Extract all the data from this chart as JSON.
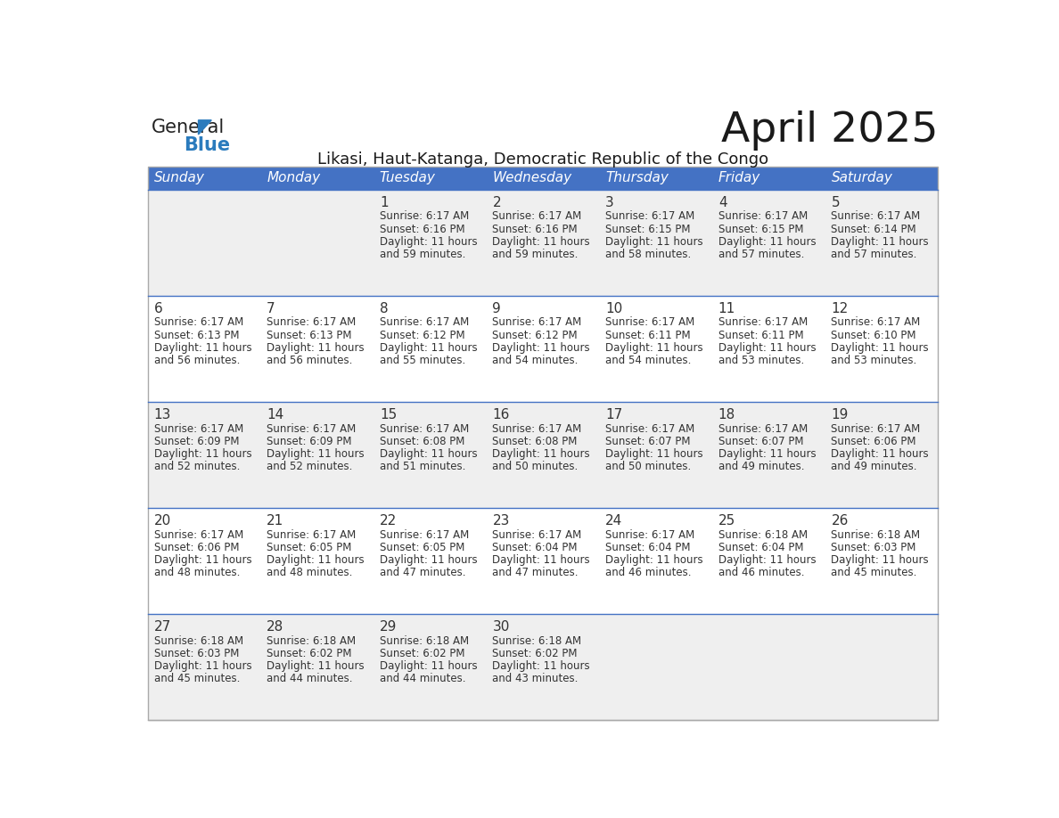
{
  "title": "April 2025",
  "subtitle": "Likasi, Haut-Katanga, Democratic Republic of the Congo",
  "header_bg": "#4472C4",
  "header_text_color": "#FFFFFF",
  "row_bg_odd": "#EFEFEF",
  "row_bg_even": "#FFFFFF",
  "separator_color": "#4472C4",
  "text_color": "#333333",
  "days_of_week": [
    "Sunday",
    "Monday",
    "Tuesday",
    "Wednesday",
    "Thursday",
    "Friday",
    "Saturday"
  ],
  "weeks": [
    [
      {
        "day": "",
        "sunrise": "",
        "sunset": "",
        "daylight": ""
      },
      {
        "day": "",
        "sunrise": "",
        "sunset": "",
        "daylight": ""
      },
      {
        "day": "1",
        "sunrise": "6:17 AM",
        "sunset": "6:16 PM",
        "daylight": "11 hours and 59 minutes."
      },
      {
        "day": "2",
        "sunrise": "6:17 AM",
        "sunset": "6:16 PM",
        "daylight": "11 hours and 59 minutes."
      },
      {
        "day": "3",
        "sunrise": "6:17 AM",
        "sunset": "6:15 PM",
        "daylight": "11 hours and 58 minutes."
      },
      {
        "day": "4",
        "sunrise": "6:17 AM",
        "sunset": "6:15 PM",
        "daylight": "11 hours and 57 minutes."
      },
      {
        "day": "5",
        "sunrise": "6:17 AM",
        "sunset": "6:14 PM",
        "daylight": "11 hours and 57 minutes."
      }
    ],
    [
      {
        "day": "6",
        "sunrise": "6:17 AM",
        "sunset": "6:13 PM",
        "daylight": "11 hours and 56 minutes."
      },
      {
        "day": "7",
        "sunrise": "6:17 AM",
        "sunset": "6:13 PM",
        "daylight": "11 hours and 56 minutes."
      },
      {
        "day": "8",
        "sunrise": "6:17 AM",
        "sunset": "6:12 PM",
        "daylight": "11 hours and 55 minutes."
      },
      {
        "day": "9",
        "sunrise": "6:17 AM",
        "sunset": "6:12 PM",
        "daylight": "11 hours and 54 minutes."
      },
      {
        "day": "10",
        "sunrise": "6:17 AM",
        "sunset": "6:11 PM",
        "daylight": "11 hours and 54 minutes."
      },
      {
        "day": "11",
        "sunrise": "6:17 AM",
        "sunset": "6:11 PM",
        "daylight": "11 hours and 53 minutes."
      },
      {
        "day": "12",
        "sunrise": "6:17 AM",
        "sunset": "6:10 PM",
        "daylight": "11 hours and 53 minutes."
      }
    ],
    [
      {
        "day": "13",
        "sunrise": "6:17 AM",
        "sunset": "6:09 PM",
        "daylight": "11 hours and 52 minutes."
      },
      {
        "day": "14",
        "sunrise": "6:17 AM",
        "sunset": "6:09 PM",
        "daylight": "11 hours and 52 minutes."
      },
      {
        "day": "15",
        "sunrise": "6:17 AM",
        "sunset": "6:08 PM",
        "daylight": "11 hours and 51 minutes."
      },
      {
        "day": "16",
        "sunrise": "6:17 AM",
        "sunset": "6:08 PM",
        "daylight": "11 hours and 50 minutes."
      },
      {
        "day": "17",
        "sunrise": "6:17 AM",
        "sunset": "6:07 PM",
        "daylight": "11 hours and 50 minutes."
      },
      {
        "day": "18",
        "sunrise": "6:17 AM",
        "sunset": "6:07 PM",
        "daylight": "11 hours and 49 minutes."
      },
      {
        "day": "19",
        "sunrise": "6:17 AM",
        "sunset": "6:06 PM",
        "daylight": "11 hours and 49 minutes."
      }
    ],
    [
      {
        "day": "20",
        "sunrise": "6:17 AM",
        "sunset": "6:06 PM",
        "daylight": "11 hours and 48 minutes."
      },
      {
        "day": "21",
        "sunrise": "6:17 AM",
        "sunset": "6:05 PM",
        "daylight": "11 hours and 48 minutes."
      },
      {
        "day": "22",
        "sunrise": "6:17 AM",
        "sunset": "6:05 PM",
        "daylight": "11 hours and 47 minutes."
      },
      {
        "day": "23",
        "sunrise": "6:17 AM",
        "sunset": "6:04 PM",
        "daylight": "11 hours and 47 minutes."
      },
      {
        "day": "24",
        "sunrise": "6:17 AM",
        "sunset": "6:04 PM",
        "daylight": "11 hours and 46 minutes."
      },
      {
        "day": "25",
        "sunrise": "6:18 AM",
        "sunset": "6:04 PM",
        "daylight": "11 hours and 46 minutes."
      },
      {
        "day": "26",
        "sunrise": "6:18 AM",
        "sunset": "6:03 PM",
        "daylight": "11 hours and 45 minutes."
      }
    ],
    [
      {
        "day": "27",
        "sunrise": "6:18 AM",
        "sunset": "6:03 PM",
        "daylight": "11 hours and 45 minutes."
      },
      {
        "day": "28",
        "sunrise": "6:18 AM",
        "sunset": "6:02 PM",
        "daylight": "11 hours and 44 minutes."
      },
      {
        "day": "29",
        "sunrise": "6:18 AM",
        "sunset": "6:02 PM",
        "daylight": "11 hours and 44 minutes."
      },
      {
        "day": "30",
        "sunrise": "6:18 AM",
        "sunset": "6:02 PM",
        "daylight": "11 hours and 43 minutes."
      },
      {
        "day": "",
        "sunrise": "",
        "sunset": "",
        "daylight": ""
      },
      {
        "day": "",
        "sunrise": "",
        "sunset": "",
        "daylight": ""
      },
      {
        "day": "",
        "sunrise": "",
        "sunset": "",
        "daylight": ""
      }
    ]
  ],
  "logo_color_general": "#222222",
  "logo_color_blue": "#2B7BBD",
  "logo_triangle_color": "#2B7BBD"
}
